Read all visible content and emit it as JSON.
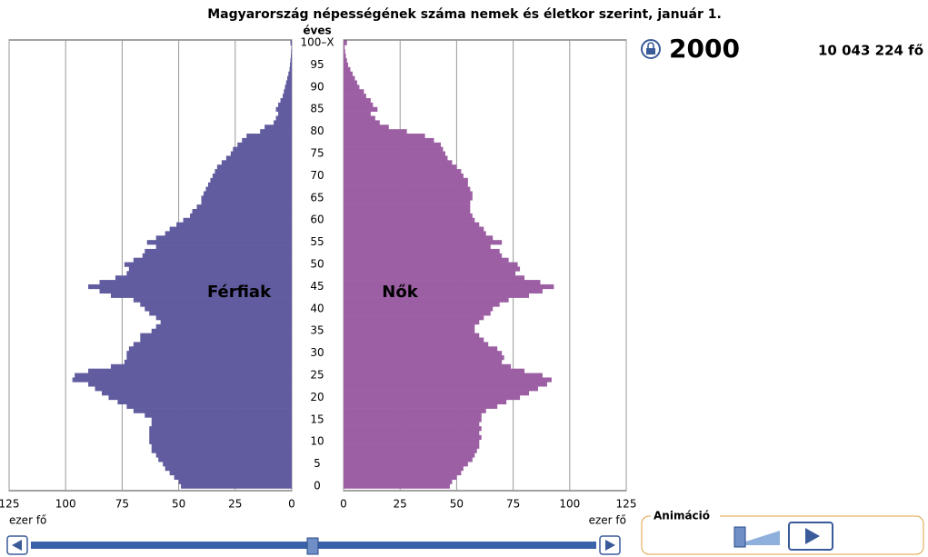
{
  "chart_data": {
    "type": "pyramid",
    "title": "Magyarország népességének száma nemek és életkor szerint, január 1.",
    "year": "2000",
    "total": "10 043 224 fő",
    "age_axis_label": "éves",
    "value_axis_label": "ezer fő",
    "animation_label": "Animáció",
    "x": [
      0,
      1,
      2,
      3,
      4,
      5,
      6,
      7,
      8,
      9,
      10,
      11,
      12,
      13,
      14,
      15,
      16,
      17,
      18,
      19,
      20,
      21,
      22,
      23,
      24,
      25,
      26,
      27,
      28,
      29,
      30,
      31,
      32,
      33,
      34,
      35,
      36,
      37,
      38,
      39,
      40,
      41,
      42,
      43,
      44,
      45,
      46,
      47,
      48,
      49,
      50,
      51,
      52,
      53,
      54,
      55,
      56,
      57,
      58,
      59,
      60,
      61,
      62,
      63,
      64,
      65,
      66,
      67,
      68,
      69,
      70,
      71,
      72,
      73,
      74,
      75,
      76,
      77,
      78,
      79,
      80,
      81,
      82,
      83,
      84,
      85,
      86,
      87,
      88,
      89,
      90,
      91,
      92,
      93,
      94,
      95,
      96,
      97,
      98,
      99,
      100
    ],
    "ageticks": [
      0,
      5,
      10,
      15,
      20,
      25,
      30,
      35,
      40,
      45,
      50,
      55,
      60,
      65,
      70,
      75,
      80,
      85,
      90,
      95,
      {
        "value": 100,
        "label": "100–X"
      }
    ],
    "xlim": [
      0,
      125
    ],
    "xticks": [
      0,
      25,
      50,
      75,
      100,
      125
    ],
    "grid": true,
    "series": [
      {
        "name": "Férfiak",
        "color": "#605c9f",
        "side": "left",
        "values": [
          49,
          50,
          52,
          54,
          56,
          57,
          59,
          60,
          62,
          62,
          63,
          63,
          63,
          63,
          62,
          62,
          65,
          70,
          73,
          77,
          81,
          84,
          87,
          90,
          97,
          96,
          90,
          80,
          74,
          73,
          73,
          72,
          70,
          67,
          67,
          62,
          60,
          58,
          60,
          63,
          65,
          67,
          70,
          80,
          85,
          90,
          85,
          78,
          73,
          72,
          74,
          70,
          66,
          65,
          60,
          64,
          60,
          56,
          54,
          51,
          48,
          45,
          44,
          42,
          40,
          40,
          39,
          38,
          37,
          36,
          35,
          34,
          33,
          31,
          29,
          27,
          26,
          24,
          22,
          20,
          14,
          12,
          8,
          7,
          6,
          7,
          6,
          5,
          4,
          3.5,
          3,
          2.5,
          2,
          1.5,
          1,
          0.8,
          0.6,
          0.4,
          0.3,
          0.2,
          0.6
        ]
      },
      {
        "name": "Nők",
        "color": "#9c5fa3",
        "side": "right",
        "values": [
          47,
          48,
          50,
          52,
          53,
          55,
          57,
          58,
          59,
          60,
          60,
          61,
          60,
          61,
          60,
          61,
          61,
          63,
          68,
          72,
          78,
          82,
          86,
          90,
          92,
          88,
          80,
          74,
          70,
          71,
          70,
          68,
          64,
          62,
          60,
          58,
          58,
          60,
          62,
          65,
          66,
          69,
          73,
          82,
          88,
          93,
          87,
          80,
          76,
          78,
          77,
          73,
          70,
          69,
          65,
          70,
          66,
          63,
          62,
          60,
          58,
          57,
          56,
          56,
          56,
          57,
          57,
          56,
          55,
          55,
          53,
          52,
          50,
          48,
          46,
          45,
          44,
          43,
          40,
          36,
          28,
          20,
          16,
          14,
          12,
          15,
          13,
          12,
          10,
          9,
          7,
          6,
          5,
          4,
          3,
          2,
          1.5,
          1,
          0.7,
          0.5,
          1.5
        ]
      }
    ]
  }
}
